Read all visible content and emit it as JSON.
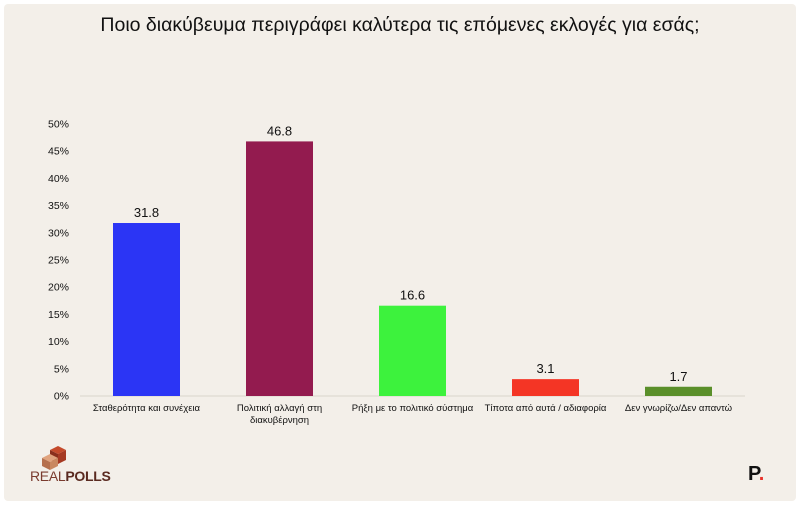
{
  "title": "Ποιο διακύβευμα περιγράφει καλύτερα τις επόμενες εκλογές για εσάς;",
  "chart_data": {
    "type": "bar",
    "categories": [
      "Σταθερότητα και συνέχεια",
      "Πολιτική αλλαγή στη διακυβέρνηση",
      "Ρήξη με το πολιτικό σύστημα",
      "Τίποτα από αυτά / αδιαφορία",
      "Δεν γνωρίζω/Δεν απαντώ"
    ],
    "values": [
      31.8,
      46.8,
      16.6,
      3.1,
      1.7
    ],
    "value_labels": [
      "31.8",
      "46.8",
      "16.6",
      "3.1",
      "1.7"
    ],
    "colors": [
      "#2b35f5",
      "#931b4f",
      "#3df23d",
      "#f43525",
      "#5a8f2a"
    ],
    "ylim": [
      0,
      50
    ],
    "yticks": [
      "0%",
      "5%",
      "10%",
      "15%",
      "20%",
      "25%",
      "30%",
      "35%",
      "40%",
      "45%",
      "50%"
    ],
    "grid": false
  },
  "logo": {
    "text_light": "REAL",
    "text_bold": "POLLS"
  },
  "brand": {
    "letter": "P",
    "dot": "."
  }
}
